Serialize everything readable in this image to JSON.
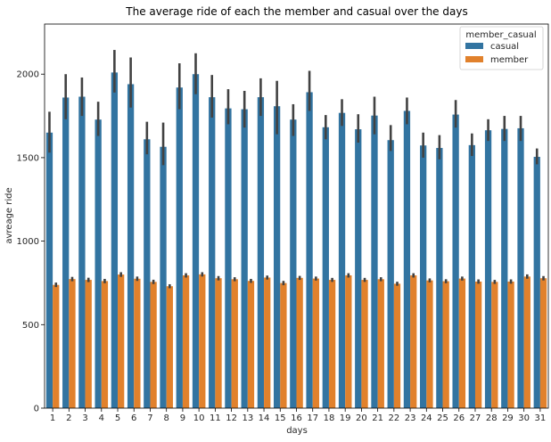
{
  "chart_data": {
    "type": "bar",
    "title": "The average ride of each the member and casual over the days",
    "xlabel": "days",
    "ylabel": "avreage ride",
    "ylim": [
      0,
      2300
    ],
    "yticks": [
      0,
      500,
      1000,
      1500,
      2000
    ],
    "grid": false,
    "legend": {
      "title": "member_casual",
      "placement": "top-right"
    },
    "categories": [
      "1",
      "2",
      "3",
      "4",
      "5",
      "6",
      "7",
      "8",
      "9",
      "10",
      "11",
      "12",
      "13",
      "14",
      "15",
      "16",
      "17",
      "18",
      "19",
      "20",
      "21",
      "22",
      "23",
      "24",
      "25",
      "26",
      "27",
      "28",
      "29",
      "30",
      "31"
    ],
    "series": [
      {
        "name": "casual",
        "color": "#3274a1",
        "values": [
          1650,
          1860,
          1865,
          1728,
          2010,
          1940,
          1610,
          1565,
          1920,
          2000,
          1862,
          1795,
          1790,
          1862,
          1808,
          1728,
          1892,
          1682,
          1768,
          1670,
          1752,
          1605,
          1780,
          1573,
          1558,
          1758,
          1575,
          1664,
          1672,
          1676,
          1505
        ],
        "ci_low": [
          1530,
          1730,
          1750,
          1630,
          1890,
          1800,
          1520,
          1455,
          1790,
          1880,
          1740,
          1700,
          1680,
          1750,
          1640,
          1630,
          1780,
          1610,
          1690,
          1590,
          1640,
          1540,
          1700,
          1500,
          1490,
          1680,
          1510,
          1600,
          1600,
          1600,
          1460
        ],
        "ci_high": [
          1775,
          2000,
          1980,
          1835,
          2145,
          2100,
          1715,
          1710,
          2065,
          2125,
          1995,
          1910,
          1900,
          1975,
          1960,
          1820,
          2020,
          1755,
          1850,
          1760,
          1865,
          1695,
          1860,
          1650,
          1635,
          1845,
          1645,
          1730,
          1750,
          1750,
          1555
        ]
      },
      {
        "name": "member",
        "color": "#e1812c",
        "values": [
          738,
          773,
          768,
          761,
          800,
          775,
          756,
          730,
          795,
          801,
          778,
          772,
          762,
          782,
          749,
          780,
          776,
          768,
          795,
          768,
          772,
          745,
          795,
          765,
          760,
          776,
          758,
          756,
          758,
          788,
          778
        ],
        "ci_low": [
          725,
          760,
          755,
          748,
          786,
          762,
          743,
          718,
          782,
          788,
          765,
          760,
          750,
          770,
          736,
          768,
          764,
          756,
          782,
          756,
          760,
          733,
          782,
          753,
          748,
          764,
          745,
          744,
          745,
          775,
          765
        ],
        "ci_high": [
          752,
          786,
          781,
          774,
          814,
          788,
          769,
          742,
          808,
          814,
          791,
          784,
          774,
          794,
          762,
          792,
          788,
          780,
          808,
          780,
          784,
          757,
          808,
          777,
          772,
          788,
          771,
          768,
          771,
          801,
          791
        ]
      }
    ]
  }
}
